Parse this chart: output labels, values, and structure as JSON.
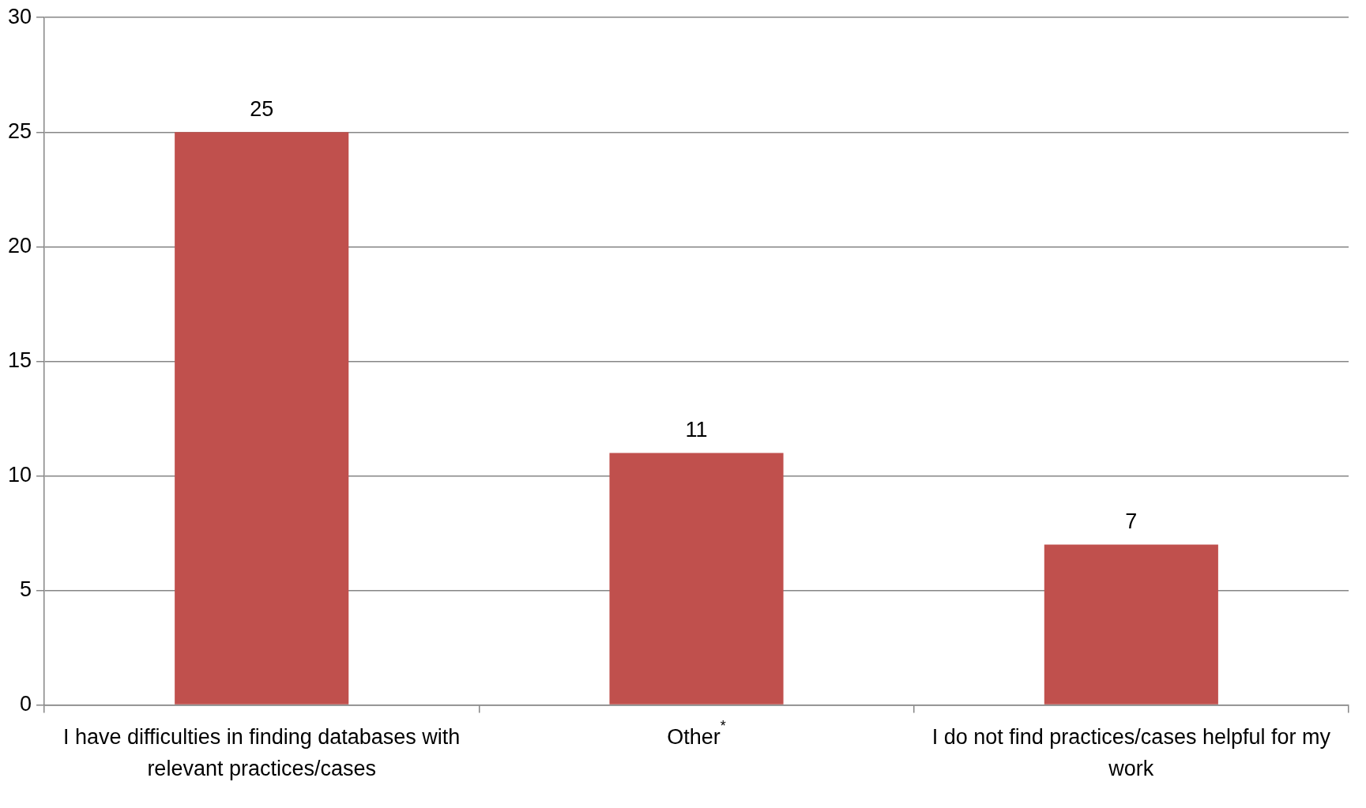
{
  "chart_data": {
    "type": "bar",
    "categories": [
      "I have difficulties in finding databases with relevant practices/cases",
      "Other$^{*}$",
      "I do not find practices/cases helpful for my work"
    ],
    "values": [
      25,
      11,
      7
    ],
    "color": "#c0504d",
    "ylim": [
      0,
      30
    ],
    "yticks": [
      0,
      5,
      10,
      15,
      20,
      25,
      30
    ],
    "grid": "y",
    "data_labels": true,
    "legend": false
  }
}
